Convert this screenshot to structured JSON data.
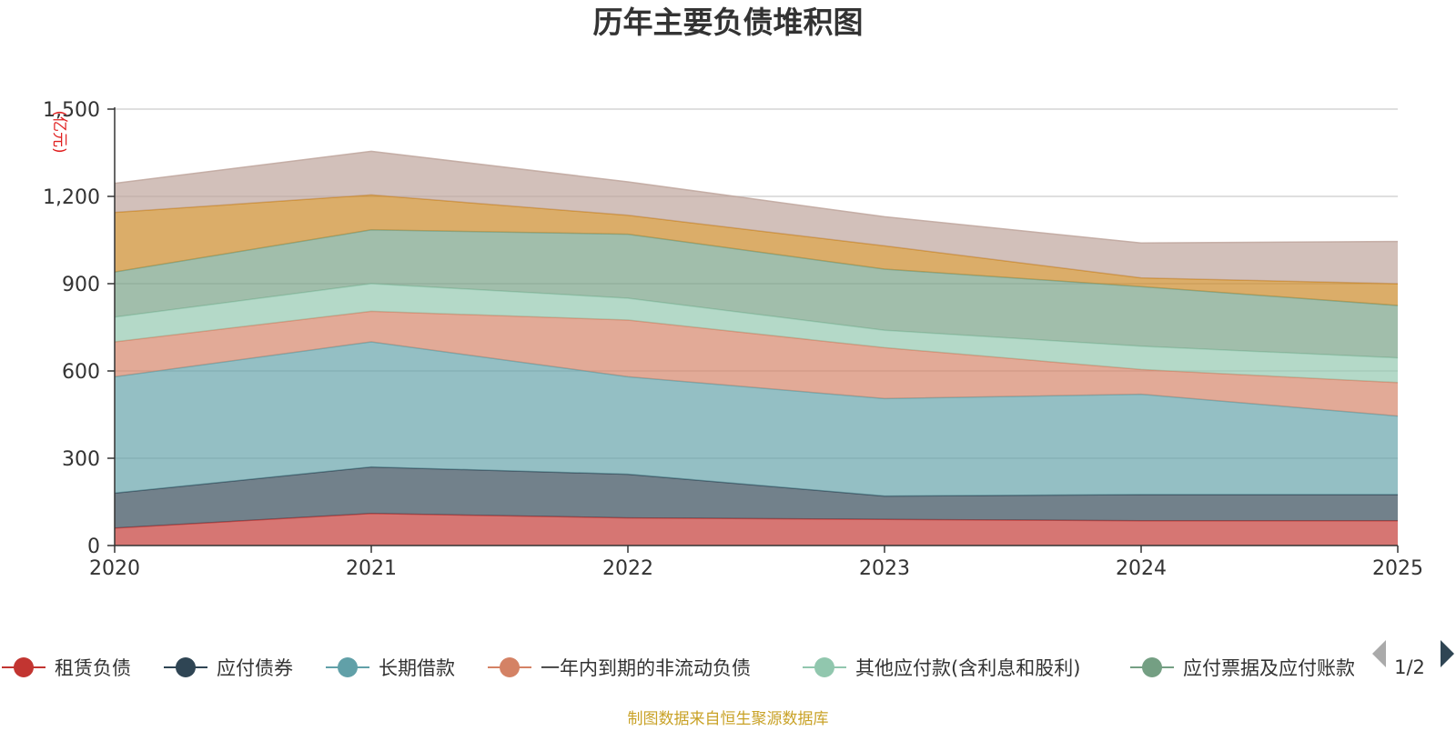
{
  "chart_data": {
    "type": "area",
    "stacked": true,
    "title": "历年主要负债堆积图",
    "ylabel": "(亿元)",
    "xlabel": "",
    "categories": [
      "2020",
      "2021",
      "2022",
      "2023",
      "2024",
      "2025"
    ],
    "ylim": [
      0,
      1500
    ],
    "y_ticks": [
      0,
      300,
      600,
      900,
      1200,
      1500
    ],
    "y_tick_labels": [
      "0",
      "300",
      "600",
      "900",
      "1,200",
      "1,500"
    ],
    "grid": true,
    "legend_position": "bottom",
    "series": [
      {
        "name": "租赁负债",
        "color": "#c23531",
        "values": [
          60,
          110,
          95,
          90,
          85,
          85
        ]
      },
      {
        "name": "应付债券",
        "color": "#2f4554",
        "values": [
          120,
          160,
          150,
          80,
          90,
          90
        ]
      },
      {
        "name": "长期借款",
        "color": "#61a0a8",
        "values": [
          400,
          430,
          335,
          335,
          345,
          270
        ]
      },
      {
        "name": "一年内到期的非流动负债",
        "color": "#d48265",
        "values": [
          120,
          105,
          195,
          175,
          85,
          115
        ]
      },
      {
        "name": "其他应付款(含利息和股利)",
        "color": "#91c7ae",
        "values": [
          85,
          95,
          75,
          60,
          80,
          85
        ]
      },
      {
        "name": "应付票据及应付账款",
        "color": "#749f83",
        "values": [
          155,
          185,
          220,
          210,
          205,
          180
        ]
      },
      {
        "name": "",
        "color": "#ca8622",
        "values": [
          205,
          120,
          65,
          80,
          30,
          75
        ]
      },
      {
        "name": "",
        "color": "#bda29a",
        "values": [
          100,
          150,
          115,
          100,
          120,
          145
        ]
      }
    ],
    "legend_page": "1/2",
    "source_note": "制图数据来自恒生聚源数据库"
  }
}
